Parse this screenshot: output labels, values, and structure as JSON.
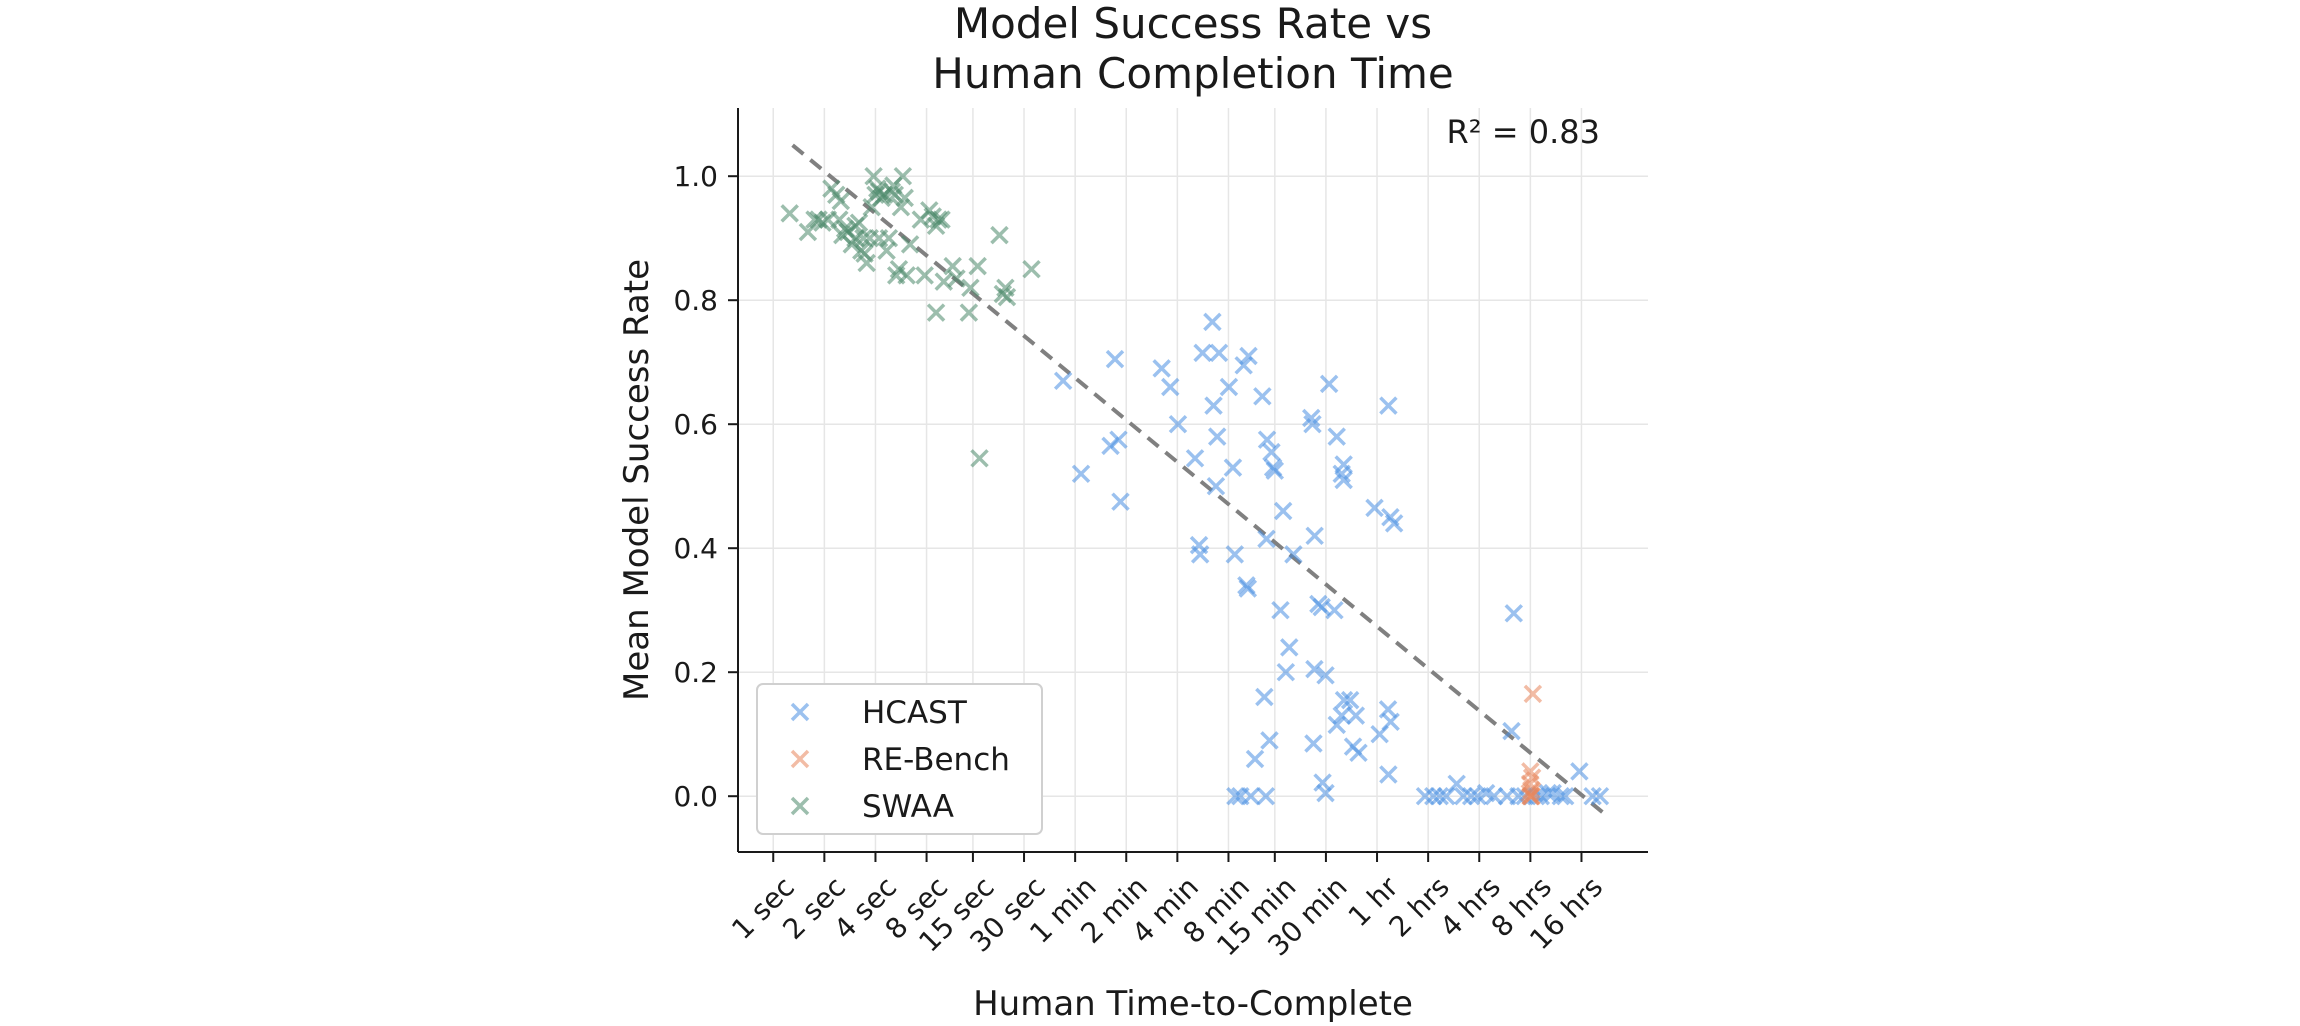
{
  "chart_data": {
    "type": "scatter",
    "title_lines": [
      "Model Success Rate vs",
      "Human Completion Time"
    ],
    "xlabel": "Human Time-to-Complete",
    "ylabel": "Mean Model Success Rate",
    "x_scale": "log2",
    "x_unit": "seconds",
    "x_ticks": [
      {
        "value": 1,
        "label": "1 sec"
      },
      {
        "value": 2,
        "label": "2 sec"
      },
      {
        "value": 4,
        "label": "4 sec"
      },
      {
        "value": 8,
        "label": "8 sec"
      },
      {
        "value": 15,
        "label": "15 sec"
      },
      {
        "value": 30,
        "label": "30 sec"
      },
      {
        "value": 60,
        "label": "1 min"
      },
      {
        "value": 120,
        "label": "2 min"
      },
      {
        "value": 240,
        "label": "4 min"
      },
      {
        "value": 480,
        "label": "8 min"
      },
      {
        "value": 900,
        "label": "15 min"
      },
      {
        "value": 1800,
        "label": "30 min"
      },
      {
        "value": 3600,
        "label": "1 hr"
      },
      {
        "value": 7200,
        "label": "2 hrs"
      },
      {
        "value": 14400,
        "label": "4 hrs"
      },
      {
        "value": 28800,
        "label": "8 hrs"
      },
      {
        "value": 57600,
        "label": "16 hrs"
      }
    ],
    "xlim": [
      0.62,
      142000
    ],
    "y_ticks": [
      {
        "value": 0.0,
        "label": "0.0"
      },
      {
        "value": 0.2,
        "label": "0.2"
      },
      {
        "value": 0.4,
        "label": "0.4"
      },
      {
        "value": 0.6,
        "label": "0.6"
      },
      {
        "value": 0.8,
        "label": "0.8"
      },
      {
        "value": 1.0,
        "label": "1.0"
      }
    ],
    "ylim": [
      -0.09,
      1.11
    ],
    "grid": true,
    "legend_position": "lower-left",
    "annotation": "R² = 0.83",
    "trend_line": {
      "x": [
        1.3,
        80000
      ],
      "y": [
        1.05,
        -0.03
      ],
      "color": "#808080",
      "style": "dashed"
    },
    "series": [
      {
        "name": "HCAST",
        "color": "#4a90e2",
        "marker": "x",
        "points": [
          [
            51,
            0.67
          ],
          [
            65,
            0.52
          ],
          [
            103,
            0.705
          ],
          [
            97,
            0.565
          ],
          [
            108,
            0.575
          ],
          [
            111,
            0.475
          ],
          [
            194,
            0.69
          ],
          [
            218,
            0.66
          ],
          [
            242,
            0.6
          ],
          [
            305,
            0.545
          ],
          [
            327,
            0.39
          ],
          [
            322,
            0.405
          ],
          [
            338,
            0.715
          ],
          [
            386,
            0.765
          ],
          [
            392,
            0.63
          ],
          [
            412,
            0.58
          ],
          [
            405,
            0.5
          ],
          [
            422,
            0.715
          ],
          [
            483,
            0.66
          ],
          [
            510,
            0.53
          ],
          [
            590,
            0.695
          ],
          [
            630,
            0.71
          ],
          [
            612,
            0.34
          ],
          [
            624,
            0.335
          ],
          [
            523,
            0.39
          ],
          [
            760,
            0.645
          ],
          [
            810,
            0.575
          ],
          [
            860,
            0.555
          ],
          [
            880,
            0.53
          ],
          [
            900,
            0.525
          ],
          [
            1008,
            0.46
          ],
          [
            804,
            0.415
          ],
          [
            972,
            0.3
          ],
          [
            1095,
            0.24
          ],
          [
            1158,
            0.39
          ],
          [
            1475,
            0.61
          ],
          [
            1500,
            0.6
          ],
          [
            1545,
            0.42
          ],
          [
            1625,
            0.31
          ],
          [
            1700,
            0.305
          ],
          [
            1880,
            0.665
          ],
          [
            2084,
            0.58
          ],
          [
            2290,
            0.535
          ],
          [
            2230,
            0.52
          ],
          [
            2290,
            0.51
          ],
          [
            2021,
            0.3
          ],
          [
            1540,
            0.205
          ],
          [
            1790,
            0.195
          ],
          [
            1045,
            0.2
          ],
          [
            781,
            0.16
          ],
          [
            837,
            0.09
          ],
          [
            2230,
            0.13
          ],
          [
            2300,
            0.155
          ],
          [
            2500,
            0.155
          ],
          [
            2085,
            0.115
          ],
          [
            2700,
            0.13
          ],
          [
            2600,
            0.08
          ],
          [
            2800,
            0.07
          ],
          [
            1520,
            0.085
          ],
          [
            688,
            0.06
          ],
          [
            3480,
            0.465
          ],
          [
            4315,
            0.45
          ],
          [
            4540,
            0.44
          ],
          [
            4200,
            0.63
          ],
          [
            3730,
            0.1
          ],
          [
            4330,
            0.12
          ],
          [
            4180,
            0.14
          ],
          [
            4200,
            0.035
          ],
          [
            1720,
            0.022
          ],
          [
            1790,
            0.005
          ],
          [
            527,
            0.0
          ],
          [
            564,
            0.0
          ],
          [
            650,
            0.0
          ],
          [
            797,
            0.0
          ],
          [
            6900,
            0.0
          ],
          [
            7720,
            0.0
          ],
          [
            8420,
            0.0
          ],
          [
            9200,
            0.0
          ],
          [
            10600,
            0.02
          ],
          [
            11600,
            0.0
          ],
          [
            12900,
            0.0
          ],
          [
            14100,
            0.0
          ],
          [
            15800,
            0.005
          ],
          [
            17600,
            0.0
          ],
          [
            21000,
            0.0
          ],
          [
            22300,
            0.105
          ],
          [
            23000,
            0.295
          ],
          [
            24500,
            0.0
          ],
          [
            26700,
            0.0
          ],
          [
            31100,
            0.0
          ],
          [
            33200,
            0.0
          ],
          [
            36500,
            0.005
          ],
          [
            39000,
            0.005
          ],
          [
            43500,
            0.0
          ],
          [
            46200,
            0.0
          ],
          [
            56000,
            0.04
          ],
          [
            67000,
            0.0
          ],
          [
            74000,
            0.0
          ]
        ]
      },
      {
        "name": "RE-Bench",
        "color": "#e8875d",
        "marker": "x",
        "points": [
          [
            29800,
            0.165
          ],
          [
            28600,
            0.005
          ],
          [
            28900,
            0.0
          ],
          [
            28700,
            0.02
          ],
          [
            29200,
            0.01
          ],
          [
            29500,
            0.03
          ],
          [
            28800,
            0.04
          ],
          [
            29000,
            0.0
          ],
          [
            29300,
            0.0
          ]
        ]
      },
      {
        "name": "SWAA",
        "color": "#4d8a6b",
        "marker": "x",
        "points": [
          [
            1.25,
            0.94
          ],
          [
            1.6,
            0.91
          ],
          [
            1.75,
            0.93
          ],
          [
            1.85,
            0.93
          ],
          [
            1.95,
            0.925
          ],
          [
            2.1,
            0.93
          ],
          [
            2.2,
            0.98
          ],
          [
            2.35,
            0.97
          ],
          [
            2.45,
            0.93
          ],
          [
            2.55,
            0.905
          ],
          [
            2.65,
            0.915
          ],
          [
            2.75,
            0.91
          ],
          [
            2.9,
            0.89
          ],
          [
            3.05,
            0.9
          ],
          [
            3.2,
            0.925
          ],
          [
            3.3,
            0.88
          ],
          [
            3.45,
            0.875
          ],
          [
            3.55,
            0.86
          ],
          [
            3.7,
            0.9
          ],
          [
            3.8,
            0.95
          ],
          [
            3.9,
            1.0
          ],
          [
            4.0,
            0.97
          ],
          [
            4.1,
            0.98
          ],
          [
            4.2,
            0.975
          ],
          [
            4.35,
            0.965
          ],
          [
            4.5,
            0.97
          ],
          [
            4.65,
            0.88
          ],
          [
            4.8,
            0.9
          ],
          [
            5.0,
            0.975
          ],
          [
            5.1,
            0.985
          ],
          [
            5.2,
            0.97
          ],
          [
            5.3,
            0.84
          ],
          [
            5.5,
            0.85
          ],
          [
            5.65,
            0.95
          ],
          [
            5.8,
            1.0
          ],
          [
            5.95,
            0.965
          ],
          [
            6.1,
            0.84
          ],
          [
            6.4,
            0.89
          ],
          [
            7.4,
            0.93
          ],
          [
            7.8,
            0.84
          ],
          [
            8.3,
            0.945
          ],
          [
            8.7,
            0.935
          ],
          [
            9.1,
            0.92
          ],
          [
            9.4,
            0.93
          ],
          [
            9.1,
            0.78
          ],
          [
            9.8,
            0.93
          ],
          [
            10.1,
            0.83
          ],
          [
            11.4,
            0.855
          ],
          [
            12.0,
            0.835
          ],
          [
            14.2,
            0.78
          ],
          [
            14.5,
            0.82
          ],
          [
            16.0,
            0.855
          ],
          [
            16.4,
            0.545
          ],
          [
            21.5,
            0.905
          ],
          [
            22.5,
            0.81
          ],
          [
            23.3,
            0.82
          ],
          [
            23.8,
            0.805
          ],
          [
            33.2,
            0.85
          ],
          [
            3.4,
            0.9
          ],
          [
            3.05,
            0.92
          ],
          [
            4.2,
            0.9
          ],
          [
            2.5,
            0.96
          ]
        ]
      }
    ]
  }
}
